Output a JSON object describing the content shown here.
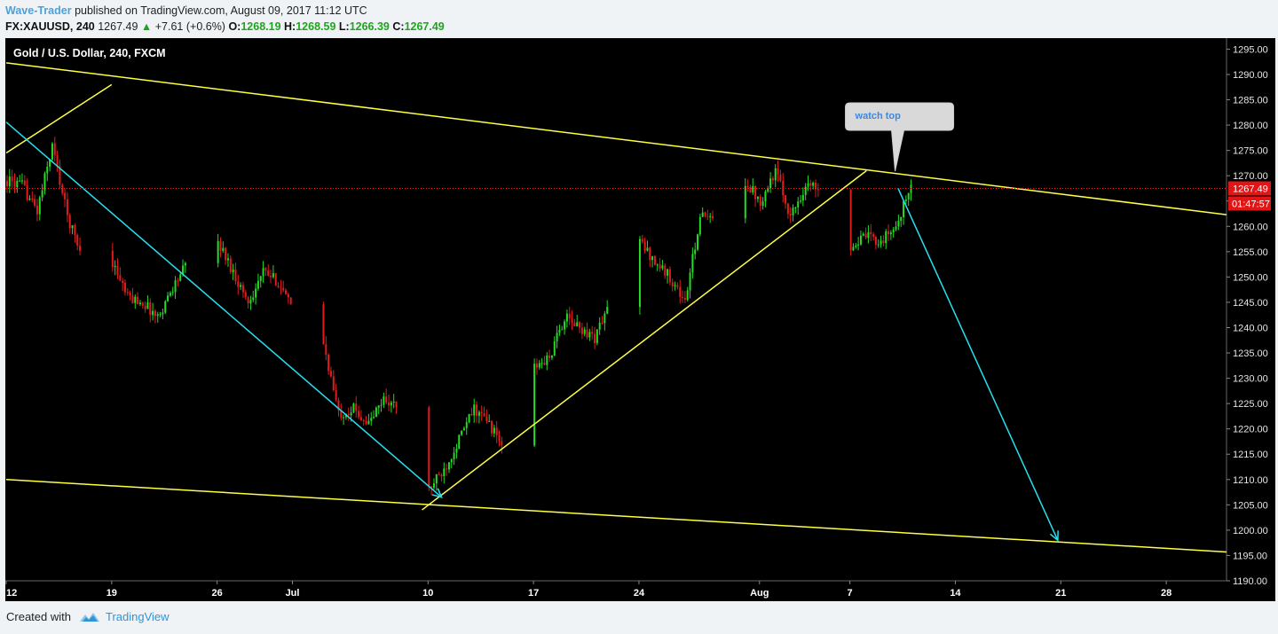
{
  "header": {
    "author": "Wave-Trader",
    "published_text": "published on TradingView.com, August 09, 2017 11:12 UTC",
    "symbol": "FX:XAUUSD, 240",
    "last": "1267.49",
    "change_arrow": "▲",
    "change": "+7.61 (+0.6%)",
    "open_label": "O:",
    "open": "1268.19",
    "high_label": "H:",
    "high": "1268.59",
    "low_label": "L:",
    "low": "1266.39",
    "close_label": "C:",
    "close": "1267.49"
  },
  "chart_data": {
    "type": "candlestick",
    "title": "Gold / U.S. Dollar, 240, FXCM",
    "ylim": [
      1190,
      1297
    ],
    "y_ticks": [
      1190,
      1195,
      1200,
      1205,
      1210,
      1215,
      1220,
      1225,
      1230,
      1235,
      1240,
      1245,
      1250,
      1255,
      1260,
      1265,
      1270,
      1275,
      1280,
      1285,
      1290,
      1295
    ],
    "y_tick_labels": [
      "1190.00",
      "1195.00",
      "1200.00",
      "1205.00",
      "1210.00",
      "1215.00",
      "1220.00",
      "1225.00",
      "1230.00",
      "1235.00",
      "1240.00",
      "1245.00",
      "1250.00",
      "1255.00",
      "1260.00",
      "1265.00",
      "1270.00",
      "1275.00",
      "1280.00",
      "1285.00",
      "1290.00",
      "1295.00"
    ],
    "x_unit": "days since June 12, 2017",
    "xlim": [
      0,
      81
    ],
    "x_ticks": [
      {
        "x": 0,
        "label": "12"
      },
      {
        "x": 7,
        "label": "19"
      },
      {
        "x": 14,
        "label": "26"
      },
      {
        "x": 19,
        "label": "Jul"
      },
      {
        "x": 28,
        "label": "10"
      },
      {
        "x": 35,
        "label": "17"
      },
      {
        "x": 42,
        "label": "24"
      },
      {
        "x": 50,
        "label": "Aug"
      },
      {
        "x": 56,
        "label": "7"
      },
      {
        "x": 63,
        "label": "14"
      },
      {
        "x": 70,
        "label": "21"
      },
      {
        "x": 77,
        "label": "28"
      }
    ],
    "price_path": [
      [
        0,
        1269
      ],
      [
        1,
        1268
      ],
      [
        2,
        1263
      ],
      [
        3,
        1276
      ],
      [
        4,
        1262
      ],
      [
        5,
        1254
      ],
      [
        6,
        1255
      ],
      [
        7,
        1253
      ],
      [
        8,
        1246
      ],
      [
        9,
        1245
      ],
      [
        10,
        1242
      ],
      [
        11,
        1248
      ],
      [
        12,
        1253
      ],
      [
        13,
        1251
      ],
      [
        14,
        1257
      ],
      [
        15,
        1251
      ],
      [
        16,
        1245
      ],
      [
        17,
        1251
      ],
      [
        18,
        1249
      ],
      [
        19,
        1243
      ],
      [
        20,
        1241
      ],
      [
        21,
        1237
      ],
      [
        22,
        1223
      ],
      [
        23,
        1224
      ],
      [
        24,
        1221
      ],
      [
        25,
        1226
      ],
      [
        26,
        1224
      ],
      [
        27,
        1218
      ],
      [
        28,
        1208
      ],
      [
        29,
        1212
      ],
      [
        30,
        1218
      ],
      [
        31,
        1224
      ],
      [
        32,
        1221
      ],
      [
        33,
        1216
      ],
      [
        34,
        1228
      ],
      [
        35,
        1232
      ],
      [
        36,
        1234
      ],
      [
        37,
        1242
      ],
      [
        38,
        1240
      ],
      [
        39,
        1238
      ],
      [
        40,
        1245
      ],
      [
        41,
        1253
      ],
      [
        42,
        1257
      ],
      [
        43,
        1253
      ],
      [
        44,
        1250
      ],
      [
        45,
        1245
      ],
      [
        46,
        1262
      ],
      [
        47,
        1261
      ],
      [
        48,
        1268
      ],
      [
        49,
        1269
      ],
      [
        50,
        1265
      ],
      [
        51,
        1271
      ],
      [
        52,
        1262
      ],
      [
        53,
        1268
      ],
      [
        54,
        1268
      ],
      [
        55,
        1258
      ],
      [
        56,
        1256
      ],
      [
        57,
        1258
      ],
      [
        58,
        1257
      ],
      [
        59,
        1260
      ],
      [
        60,
        1268
      ]
    ],
    "current_price": 1267.49,
    "current_price_label": "1267.49",
    "countdown": "01:47:57",
    "trendlines": [
      {
        "color": "#ffff44",
        "from": [
          0,
          1292.3
        ],
        "to": [
          81,
          1262.3
        ]
      },
      {
        "color": "#ffff44",
        "from": [
          0,
          1210.0
        ],
        "to": [
          81,
          1195.7
        ]
      },
      {
        "color": "#ffff44",
        "from": [
          0,
          1274.5
        ],
        "to": [
          7,
          1288.0
        ]
      },
      {
        "color": "#ffff44",
        "from": [
          27.6,
          1204.0
        ],
        "to": [
          57.1,
          1271.0
        ]
      },
      {
        "color": "#26e0f0",
        "from": [
          0,
          1280.6
        ],
        "to": [
          28.9,
          1206.5
        ],
        "arrow": true
      },
      {
        "color": "#26e0f0",
        "from": [
          59.2,
          1267.5
        ],
        "to": [
          69.8,
          1198.0
        ],
        "arrow": true
      }
    ],
    "annotation": {
      "text": "watch top",
      "x": 59.0,
      "y": 1270.9
    }
  },
  "footer": {
    "created_with": "Created with",
    "brand": "TradingView"
  },
  "colors": {
    "background": "#000000",
    "up": "#22dd22",
    "down": "#e21b1b",
    "price_line": "#ff2020",
    "trend_yellow": "#ffff44",
    "trend_cyan": "#26e0f0"
  }
}
